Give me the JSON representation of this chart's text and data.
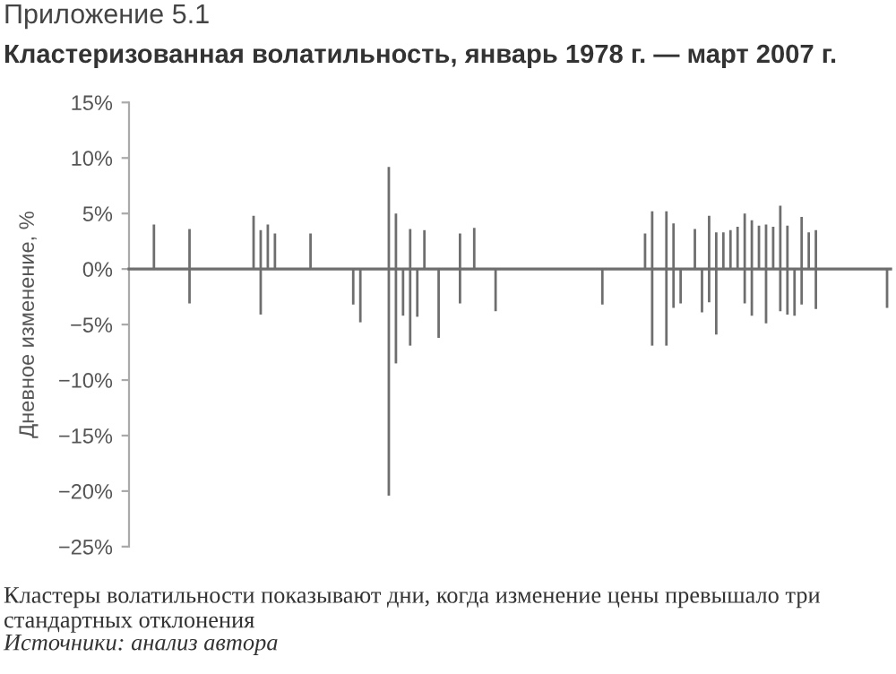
{
  "chart_data": {
    "type": "bar",
    "subtitle": "Приложение 5.1",
    "title": "Кластеризованная волатильность, январь 1978 г. — март 2007 г.",
    "ylabel": "Дневное изменение, %",
    "annotations": [
      "Кластеры волатильности показывают дни, когда изменение цены превышало три стандартных отклонения",
      "Источники: анализ автора"
    ],
    "categories": [
      null,
      null,
      null,
      null,
      null,
      null,
      null,
      null,
      null,
      null,
      null,
      null,
      null,
      null,
      null,
      null,
      null,
      null,
      null,
      null,
      null,
      null,
      null,
      null,
      null,
      null,
      null,
      null,
      null,
      null,
      null,
      null,
      null,
      null,
      null,
      null,
      null,
      null,
      null,
      null,
      null,
      null,
      null,
      null,
      null,
      null,
      null,
      null,
      null,
      null,
      null,
      null,
      null,
      null,
      null,
      null,
      null,
      null,
      null,
      null,
      null,
      null,
      null,
      null,
      null,
      null,
      null,
      null,
      null,
      null,
      null,
      null,
      null,
      null,
      null,
      null,
      null,
      null,
      null,
      null,
      null,
      null,
      null,
      null,
      null,
      null,
      null,
      null,
      null,
      null,
      null,
      null,
      null,
      null,
      null,
      null,
      null,
      null,
      null,
      null,
      null,
      null,
      null,
      null,
      null,
      null,
      null
    ],
    "series": [
      {
        "color": "#6e6e6e",
        "values": [
          null,
          null,
          null,
          4.0,
          null,
          null,
          null,
          null,
          3.6,
          null,
          null,
          null,
          null,
          null,
          null,
          null,
          null,
          4.8,
          3.5,
          4.0,
          3.2,
          null,
          null,
          null,
          null,
          3.2,
          null,
          null,
          null,
          null,
          null,
          null,
          null,
          null,
          null,
          null,
          9.2,
          5.0,
          null,
          3.6,
          null,
          3.5,
          null,
          null,
          null,
          null,
          3.2,
          null,
          3.7,
          null,
          null,
          null,
          null,
          null,
          null,
          null,
          null,
          null,
          null,
          null,
          null,
          null,
          null,
          null,
          null,
          null,
          null,
          null,
          null,
          null,
          null,
          null,
          3.2,
          5.2,
          null,
          5.2,
          4.1,
          null,
          null,
          3.6,
          null,
          4.8,
          3.3,
          3.3,
          3.5,
          3.8,
          5.0,
          4.4,
          3.9,
          4.0,
          3.8,
          5.7,
          3.9,
          null,
          4.7,
          3.3,
          3.5,
          null,
          null,
          null,
          null,
          null,
          null,
          null,
          null,
          null,
          null
        ]
      },
      {
        "color": "#6e6e6e",
        "values": [
          null,
          null,
          null,
          null,
          null,
          null,
          null,
          null,
          -3.1,
          null,
          null,
          null,
          null,
          null,
          null,
          null,
          null,
          null,
          -4.1,
          null,
          null,
          null,
          null,
          null,
          null,
          null,
          null,
          null,
          null,
          null,
          null,
          -3.2,
          -4.8,
          null,
          null,
          null,
          -20.4,
          -8.5,
          -4.2,
          -6.9,
          -4.3,
          null,
          null,
          -6.2,
          null,
          null,
          -3.1,
          null,
          null,
          null,
          null,
          -3.8,
          null,
          null,
          null,
          null,
          null,
          null,
          null,
          null,
          null,
          null,
          null,
          null,
          null,
          null,
          -3.2,
          null,
          null,
          null,
          null,
          null,
          null,
          -6.9,
          null,
          -6.9,
          -3.5,
          -3.1,
          null,
          null,
          -3.9,
          -3.0,
          -5.9,
          null,
          null,
          null,
          -3.1,
          -4.2,
          null,
          -4.9,
          null,
          -3.8,
          -4.1,
          -4.2,
          -3.2,
          null,
          -3.6,
          null,
          null,
          null,
          null,
          null,
          null,
          null,
          null,
          null,
          -3.5
        ]
      }
    ],
    "ylim": [
      -25,
      15
    ],
    "yticks": [
      {
        "value": -25,
        "label": "−25%"
      },
      {
        "value": -20,
        "label": "−20%"
      },
      {
        "value": -15,
        "label": "−15%"
      },
      {
        "value": -10,
        "label": "−10%"
      },
      {
        "value": -5,
        "label": "−5%"
      },
      {
        "value": 0,
        "label": "0%"
      },
      {
        "value": 5,
        "label": "5%"
      },
      {
        "value": 10,
        "label": "10%"
      },
      {
        "value": 15,
        "label": "15%"
      }
    ],
    "tick_labels": "y"
  }
}
